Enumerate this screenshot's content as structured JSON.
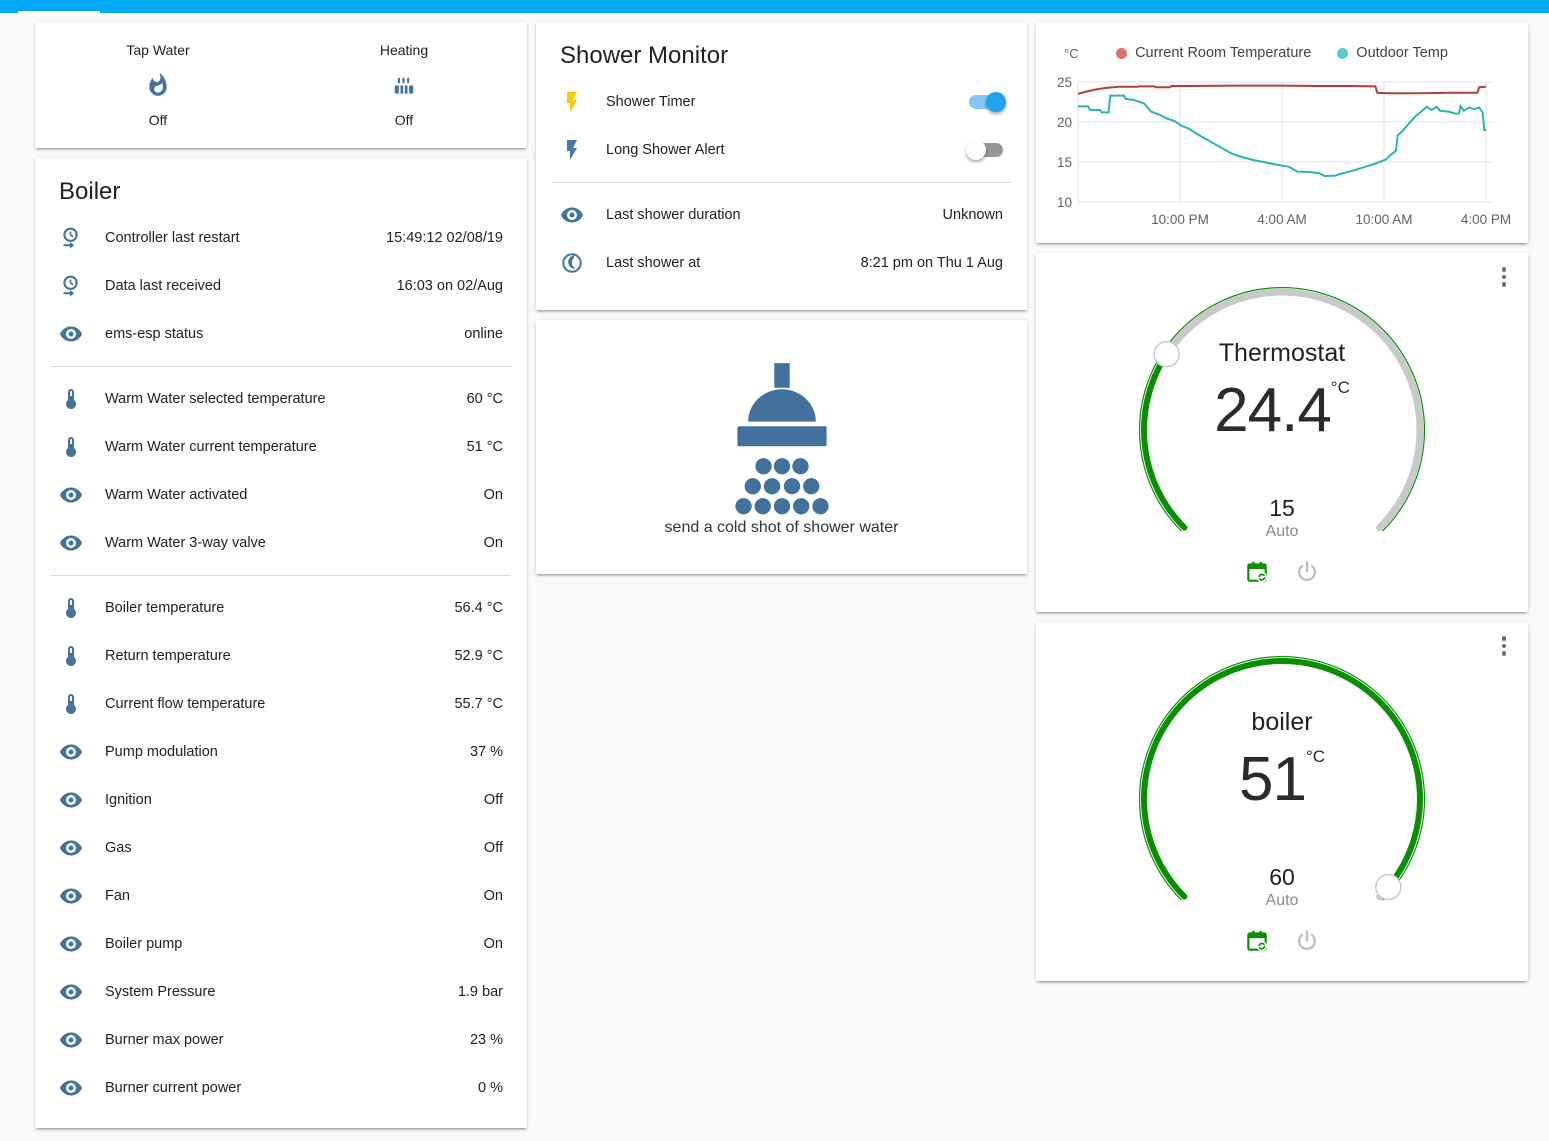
{
  "colors": {
    "header_accent": "#03a9f4",
    "icon_blue": "#44739e",
    "dial_green": "#0a8f04",
    "dial_gray": "#c9c9c9",
    "toggle_on": "#21a2ee",
    "flash_on_yellow": "#fcc70f",
    "flash_off_blue": "#4878ad"
  },
  "status_card": {
    "items": [
      {
        "icon": "fire",
        "label": "Tap Water",
        "state": "Off"
      },
      {
        "icon": "radiator",
        "label": "Heating",
        "state": "Off"
      }
    ]
  },
  "boiler_card": {
    "title": "Boiler",
    "rows": [
      {
        "icon": "clock-start",
        "label": "Controller last restart",
        "value": "15:49:12 02/08/19",
        "divider_after": false
      },
      {
        "icon": "clock-start",
        "label": "Data last received",
        "value": "16:03 on 02/Aug",
        "divider_after": false
      },
      {
        "icon": "eye",
        "label": "ems-esp status",
        "value": "online",
        "divider_after": true
      },
      {
        "icon": "thermometer",
        "label": "Warm Water selected temperature",
        "value": "60 °C",
        "divider_after": false
      },
      {
        "icon": "thermometer",
        "label": "Warm Water current temperature",
        "value": "51 °C",
        "divider_after": false
      },
      {
        "icon": "eye",
        "label": "Warm Water activated",
        "value": "On",
        "divider_after": false
      },
      {
        "icon": "eye",
        "label": "Warm Water 3-way valve",
        "value": "On",
        "divider_after": true
      },
      {
        "icon": "thermometer",
        "label": "Boiler temperature",
        "value": "56.4 °C",
        "divider_after": false
      },
      {
        "icon": "thermometer",
        "label": "Return temperature",
        "value": "52.9 °C",
        "divider_after": false
      },
      {
        "icon": "thermometer",
        "label": "Current flow temperature",
        "value": "55.7 °C",
        "divider_after": false
      },
      {
        "icon": "eye",
        "label": "Pump modulation",
        "value": "37 %",
        "divider_after": false
      },
      {
        "icon": "eye",
        "label": "Ignition",
        "value": "Off",
        "divider_after": false
      },
      {
        "icon": "eye",
        "label": "Gas",
        "value": "Off",
        "divider_after": false
      },
      {
        "icon": "eye",
        "label": "Fan",
        "value": "On",
        "divider_after": false
      },
      {
        "icon": "eye",
        "label": "Boiler pump",
        "value": "On",
        "divider_after": false
      },
      {
        "icon": "eye",
        "label": "System Pressure",
        "value": "1.9 bar",
        "divider_after": false
      },
      {
        "icon": "eye",
        "label": "Burner max power",
        "value": "23 %",
        "divider_after": false
      },
      {
        "icon": "eye",
        "label": "Burner current power",
        "value": "0 %",
        "divider_after": false
      }
    ]
  },
  "shower_card": {
    "title": "Shower Monitor",
    "toggles": [
      {
        "icon": "flash",
        "icon_color": "#fcc70f",
        "label": "Shower Timer",
        "state": "on"
      },
      {
        "icon": "flash",
        "icon_color": "#4878ad",
        "label": "Long Shower Alert",
        "state": "off"
      }
    ],
    "info_rows": [
      {
        "icon": "eye",
        "label": "Last shower duration",
        "value": "Unknown"
      },
      {
        "icon": "moon",
        "label": "Last shower at",
        "value": "8:21 pm on Thu 1 Aug"
      }
    ]
  },
  "shower_action": {
    "icon": "shower",
    "label": "send a cold shot of shower water"
  },
  "chart_data": {
    "type": "line",
    "title": "",
    "ylabel": "°C",
    "ylim": [
      10,
      25
    ],
    "yticks": [
      25,
      20,
      15,
      10
    ],
    "x_range_hours": [
      16,
      40
    ],
    "xticks": [
      {
        "hour": 22,
        "label": "10:00 PM"
      },
      {
        "hour": 28,
        "label": "4:00 AM"
      },
      {
        "hour": 34,
        "label": "10:00 AM"
      },
      {
        "hour": 40,
        "label": "4:00 PM"
      }
    ],
    "grid": true,
    "legend_position": "top",
    "series": [
      {
        "name": "Current Room Temperature",
        "line_color": "#b0413a",
        "dot_color": "#e07070",
        "points": [
          [
            16,
            23.5
          ],
          [
            16.3,
            23.7
          ],
          [
            17,
            24.05
          ],
          [
            17.6,
            24.25
          ],
          [
            18.4,
            24.4
          ],
          [
            19.5,
            24.4
          ],
          [
            19.6,
            24.45
          ],
          [
            20.5,
            24.45
          ],
          [
            20.6,
            24.35
          ],
          [
            21.4,
            24.35
          ],
          [
            21.5,
            24.5
          ],
          [
            22.4,
            24.5
          ],
          [
            25.5,
            24.55
          ],
          [
            28,
            24.55
          ],
          [
            30,
            24.5
          ],
          [
            32,
            24.5
          ],
          [
            33.5,
            24.45
          ],
          [
            33.6,
            23.65
          ],
          [
            34.2,
            23.6
          ],
          [
            36,
            23.6
          ],
          [
            38,
            23.65
          ],
          [
            39.5,
            23.65
          ],
          [
            39.6,
            24.35
          ],
          [
            40,
            24.4
          ]
        ]
      },
      {
        "name": "Outdoor Temp",
        "line_color": "#2cb5b0",
        "dot_color": "#5ec9c9",
        "points": [
          [
            16,
            21.95
          ],
          [
            16.6,
            21.95
          ],
          [
            16.7,
            21.5
          ],
          [
            17.3,
            21.5
          ],
          [
            17.4,
            21.2
          ],
          [
            17.8,
            21.2
          ],
          [
            17.9,
            23.3
          ],
          [
            18.7,
            23.3
          ],
          [
            18.8,
            22.9
          ],
          [
            19.3,
            22.75
          ],
          [
            19.9,
            22.3
          ],
          [
            20.3,
            21.3
          ],
          [
            20.8,
            20.9
          ],
          [
            21.2,
            20.45
          ],
          [
            21.7,
            20.1
          ],
          [
            22.1,
            19.5
          ],
          [
            22.5,
            19.2
          ],
          [
            23,
            18.5
          ],
          [
            23.5,
            17.9
          ],
          [
            24,
            17.3
          ],
          [
            24.5,
            16.7
          ],
          [
            25,
            16.1
          ],
          [
            25.5,
            15.7
          ],
          [
            26.2,
            15.3
          ],
          [
            26.9,
            15.0
          ],
          [
            27.6,
            14.7
          ],
          [
            28.4,
            14.4
          ],
          [
            28.9,
            13.8
          ],
          [
            29.6,
            13.75
          ],
          [
            30.2,
            13.6
          ],
          [
            30.5,
            13.25
          ],
          [
            31.1,
            13.3
          ],
          [
            31.6,
            13.6
          ],
          [
            32.3,
            14.0
          ],
          [
            32.9,
            14.4
          ],
          [
            33.5,
            14.8
          ],
          [
            34.1,
            15.3
          ],
          [
            34.4,
            15.9
          ],
          [
            34.7,
            16.4
          ],
          [
            34.8,
            18.3
          ],
          [
            35.1,
            18.9
          ],
          [
            35.5,
            19.9
          ],
          [
            35.9,
            20.8
          ],
          [
            36.3,
            21.5
          ],
          [
            36.5,
            21.9
          ],
          [
            36.8,
            21.5
          ],
          [
            37.1,
            21.9
          ],
          [
            37.3,
            21.4
          ],
          [
            37.8,
            21.3
          ],
          [
            38.2,
            21.05
          ],
          [
            38.4,
            21.05
          ],
          [
            38.5,
            22.0
          ],
          [
            38.7,
            21.4
          ],
          [
            39.0,
            21.8
          ],
          [
            39.3,
            21.6
          ],
          [
            39.6,
            21.8
          ],
          [
            39.8,
            21.2
          ],
          [
            39.9,
            19.0
          ],
          [
            40,
            19.0
          ]
        ]
      }
    ]
  },
  "dials": [
    {
      "title": "Thermostat",
      "current": "24.4",
      "unit": "°C",
      "setpoint": "15",
      "mode": "Auto",
      "fraction": 0.29
    },
    {
      "title": "boiler",
      "current": "51",
      "unit": "°C",
      "setpoint": "60",
      "mode": "Auto",
      "fraction": 0.98
    }
  ]
}
